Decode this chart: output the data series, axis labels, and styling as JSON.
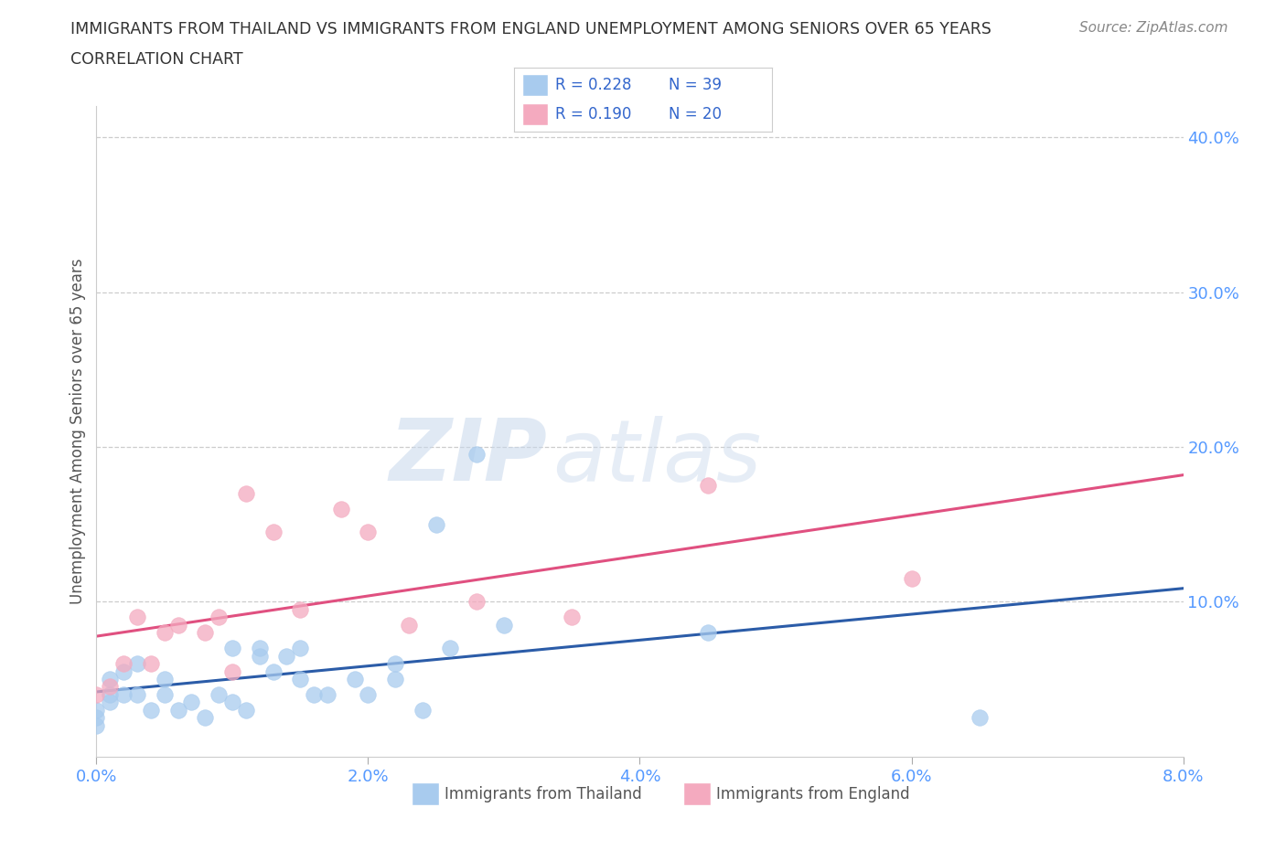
{
  "title_line1": "IMMIGRANTS FROM THAILAND VS IMMIGRANTS FROM ENGLAND UNEMPLOYMENT AMONG SENIORS OVER 65 YEARS",
  "title_line2": "CORRELATION CHART",
  "source": "Source: ZipAtlas.com",
  "ylabel": "Unemployment Among Seniors over 65 years",
  "watermark_zip": "ZIP",
  "watermark_atlas": "atlas",
  "xlim": [
    0.0,
    0.08
  ],
  "ylim": [
    0.0,
    0.42
  ],
  "thailand_color": "#A8CBEE",
  "england_color": "#F4AABF",
  "trendline_thailand_color": "#2B5CA8",
  "trendline_england_color": "#E05080",
  "legend_color": "#3366CC",
  "grid_color": "#CCCCCC",
  "background_color": "#FFFFFF",
  "title_color": "#333333",
  "axis_tick_color": "#5599FF",
  "thailand_x": [
    0.0,
    0.0,
    0.0,
    0.001,
    0.001,
    0.001,
    0.002,
    0.002,
    0.003,
    0.003,
    0.004,
    0.005,
    0.005,
    0.006,
    0.007,
    0.008,
    0.009,
    0.01,
    0.01,
    0.011,
    0.012,
    0.012,
    0.013,
    0.014,
    0.015,
    0.015,
    0.016,
    0.017,
    0.019,
    0.02,
    0.022,
    0.022,
    0.024,
    0.025,
    0.026,
    0.028,
    0.03,
    0.045,
    0.065
  ],
  "thailand_y": [
    0.02,
    0.025,
    0.03,
    0.035,
    0.04,
    0.05,
    0.04,
    0.055,
    0.04,
    0.06,
    0.03,
    0.04,
    0.05,
    0.03,
    0.035,
    0.025,
    0.04,
    0.035,
    0.07,
    0.03,
    0.065,
    0.07,
    0.055,
    0.065,
    0.05,
    0.07,
    0.04,
    0.04,
    0.05,
    0.04,
    0.05,
    0.06,
    0.03,
    0.15,
    0.07,
    0.195,
    0.085,
    0.08,
    0.025
  ],
  "england_x": [
    0.0,
    0.001,
    0.002,
    0.003,
    0.004,
    0.005,
    0.006,
    0.008,
    0.009,
    0.01,
    0.011,
    0.013,
    0.015,
    0.018,
    0.02,
    0.023,
    0.028,
    0.035,
    0.045,
    0.06
  ],
  "england_y": [
    0.04,
    0.045,
    0.06,
    0.09,
    0.06,
    0.08,
    0.085,
    0.08,
    0.09,
    0.055,
    0.17,
    0.145,
    0.095,
    0.16,
    0.145,
    0.085,
    0.1,
    0.09,
    0.175,
    0.115
  ]
}
